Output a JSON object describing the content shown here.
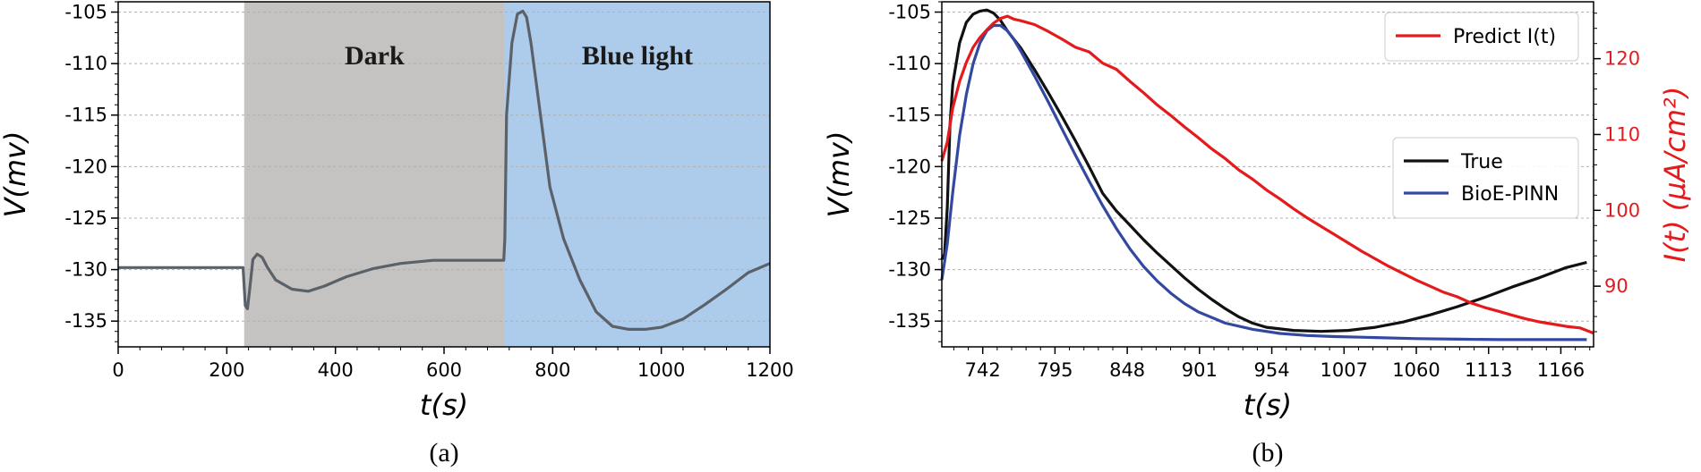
{
  "chart_data": [
    {
      "type": "line",
      "panel_label": "(a)",
      "xlabel": "t(s)",
      "ylabel": "V(mv)",
      "xlim": [
        0,
        1200
      ],
      "ylim": [
        -137.5,
        -104
      ],
      "xticks": [
        0,
        200,
        400,
        600,
        800,
        1000,
        1200
      ],
      "yticks": [
        -105,
        -110,
        -115,
        -120,
        -125,
        -130,
        -135
      ],
      "grid": "horizontal dotted",
      "regions": [
        {
          "label": "Dark",
          "x": [
            232,
            712
          ],
          "color": "#c4c3c1"
        },
        {
          "label": "Blue light",
          "x": [
            712,
            1200
          ],
          "color": "#adcbeb"
        }
      ],
      "series": [
        {
          "color": "#5a6169",
          "x": [
            0,
            100,
            200,
            230,
            234,
            238,
            242,
            248,
            256,
            265,
            275,
            290,
            320,
            350,
            380,
            420,
            470,
            520,
            580,
            640,
            700,
            710,
            712,
            715,
            725,
            735,
            745,
            752,
            760,
            775,
            795,
            820,
            850,
            880,
            910,
            940,
            970,
            1000,
            1040,
            1080,
            1120,
            1160,
            1200
          ],
          "y": [
            -129.8,
            -129.8,
            -129.8,
            -129.8,
            -133.5,
            -133.8,
            -132,
            -129,
            -128.5,
            -128.8,
            -129.8,
            -131,
            -131.9,
            -132.1,
            -131.6,
            -130.7,
            -129.9,
            -129.4,
            -129.1,
            -129.1,
            -129.1,
            -129.1,
            -127,
            -115,
            -108,
            -105.2,
            -104.9,
            -105.5,
            -108,
            -114,
            -122,
            -127,
            -131,
            -134.1,
            -135.5,
            -135.8,
            -135.8,
            -135.6,
            -134.8,
            -133.4,
            -131.9,
            -130.3,
            -129.4
          ]
        }
      ]
    },
    {
      "type": "line",
      "panel_label": "(b)",
      "xlabel": "t(s)",
      "ylabel": "V(mv)",
      "y2label": "I(t) (μA/cm²)",
      "xlim": [
        712,
        1190
      ],
      "ylim": [
        -137.5,
        -104
      ],
      "y2lim": [
        82,
        127.5
      ],
      "xticks": [
        742,
        795,
        848,
        901,
        954,
        1007,
        1060,
        1113,
        1166
      ],
      "yticks": [
        -105,
        -110,
        -115,
        -120,
        -125,
        -130,
        -135
      ],
      "y2ticks": [
        90,
        100,
        110,
        120
      ],
      "grid": "horizontal dotted",
      "legend_top_right": [
        {
          "name": "Predict I(t)",
          "color": "#e41a1c"
        }
      ],
      "legend_right": [
        {
          "name": "True",
          "color": "#111111"
        },
        {
          "name": "BioE-PINN",
          "color": "#3349a1"
        }
      ],
      "series": [
        {
          "name": "True",
          "axis": "left",
          "color": "#111111",
          "x": [
            712,
            714,
            716,
            718,
            720,
            725,
            730,
            735,
            740,
            745,
            750,
            755,
            760,
            770,
            780,
            790,
            800,
            810,
            820,
            830,
            840,
            850,
            860,
            870,
            880,
            890,
            900,
            910,
            920,
            930,
            940,
            950,
            970,
            990,
            1010,
            1030,
            1050,
            1070,
            1090,
            1110,
            1130,
            1150,
            1170,
            1185
          ],
          "y": [
            -129,
            -128.5,
            -124,
            -116,
            -112,
            -108,
            -106,
            -105.2,
            -104.9,
            -104.8,
            -105.1,
            -105.8,
            -106.8,
            -108.5,
            -110.6,
            -112.8,
            -115.1,
            -117.5,
            -120,
            -122.6,
            -124.3,
            -125.7,
            -127.1,
            -128.4,
            -129.6,
            -130.8,
            -131.9,
            -132.9,
            -133.8,
            -134.6,
            -135.2,
            -135.6,
            -135.9,
            -136,
            -135.9,
            -135.6,
            -135.1,
            -134.4,
            -133.6,
            -132.7,
            -131.7,
            -130.8,
            -129.8,
            -129.3
          ]
        },
        {
          "name": "BioE-PINN",
          "axis": "left",
          "color": "#3349a1",
          "x": [
            712,
            716,
            720,
            725,
            730,
            735,
            740,
            745,
            750,
            755,
            760,
            765,
            770,
            780,
            790,
            800,
            810,
            820,
            830,
            840,
            850,
            860,
            870,
            880,
            890,
            900,
            920,
            940,
            960,
            980,
            1000,
            1030,
            1060,
            1090,
            1120,
            1150,
            1185
          ],
          "y": [
            -131,
            -127.5,
            -122.5,
            -117,
            -113,
            -110,
            -108,
            -106.8,
            -106.3,
            -106.3,
            -106.8,
            -107.7,
            -108.8,
            -111.2,
            -113.7,
            -116.3,
            -118.9,
            -121.4,
            -123.8,
            -126,
            -128,
            -129.7,
            -131.1,
            -132.3,
            -133.3,
            -134.1,
            -135.2,
            -135.8,
            -136.2,
            -136.4,
            -136.5,
            -136.6,
            -136.7,
            -136.75,
            -136.8,
            -136.8,
            -136.8
          ]
        },
        {
          "name": "Predict I(t)",
          "axis": "right",
          "color": "#e41a1c",
          "x": [
            712,
            716,
            720,
            725,
            730,
            735,
            740,
            745,
            750,
            755,
            760,
            765,
            770,
            780,
            790,
            800,
            810,
            820,
            830,
            840,
            850,
            860,
            870,
            880,
            890,
            900,
            910,
            920,
            930,
            940,
            950,
            960,
            970,
            980,
            990,
            1000,
            1010,
            1020,
            1030,
            1040,
            1050,
            1060,
            1070,
            1080,
            1090,
            1100,
            1110,
            1120,
            1130,
            1140,
            1150,
            1160,
            1170,
            1180,
            1190
          ],
          "y": [
            106.5,
            109,
            113.5,
            117,
            119.5,
            121.5,
            122.8,
            123.8,
            124.7,
            125.3,
            125.6,
            125.2,
            125,
            124.5,
            123.6,
            122.6,
            121.5,
            120.9,
            119.4,
            118.6,
            117,
            115.5,
            113.9,
            112.5,
            111,
            109.6,
            108.1,
            106.8,
            105.3,
            104.1,
            102.7,
            101.5,
            100.2,
            99,
            97.9,
            96.8,
            95.7,
            94.6,
            93.6,
            92.6,
            91.7,
            90.8,
            90,
            89.2,
            88.6,
            87.8,
            87.2,
            86.7,
            86.2,
            85.7,
            85.3,
            85,
            84.7,
            84.5,
            83.8
          ]
        }
      ]
    }
  ]
}
